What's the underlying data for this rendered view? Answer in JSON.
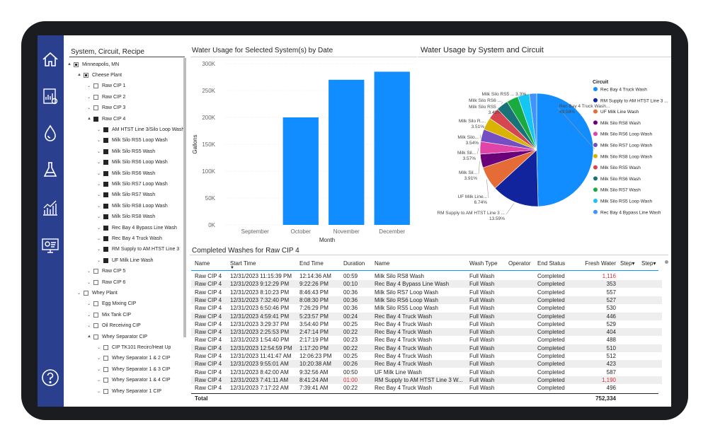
{
  "nav": {
    "icons": [
      "home-icon",
      "report-icon",
      "water-drop-icon",
      "flask-icon",
      "analytics-icon",
      "monitor-settings-icon",
      "help-icon"
    ]
  },
  "slicer": {
    "title": "System, Circuit, Recipe",
    "items": [
      {
        "label": "Minneapolis, MN",
        "level": 0,
        "expander": "▲",
        "state": "partial"
      },
      {
        "label": "Cheese Plant",
        "level": 1,
        "expander": "▲",
        "state": "partial"
      },
      {
        "label": "Raw CIP 1",
        "level": 2,
        "expander": "⌄",
        "state": "empty"
      },
      {
        "label": "Raw CIP 2",
        "level": 2,
        "expander": "⌄",
        "state": "empty"
      },
      {
        "label": "Raw CIP 3",
        "level": 2,
        "expander": "⌄",
        "state": "empty"
      },
      {
        "label": "Raw CIP 4",
        "level": 2,
        "expander": "▲",
        "state": "checked"
      },
      {
        "label": "AM HTST Line 3/Silo Loop Wash",
        "level": 3,
        "expander": "⌄",
        "state": "checked"
      },
      {
        "label": "Milk Silo RS5 Loop Wash",
        "level": 3,
        "expander": "⌄",
        "state": "checked"
      },
      {
        "label": "Milk Silo RS5 Wash",
        "level": 3,
        "expander": "⌄",
        "state": "checked"
      },
      {
        "label": "Milk Silo RS6 Loop Wash",
        "level": 3,
        "expander": "⌄",
        "state": "checked"
      },
      {
        "label": "Milk Silo RS6 Wash",
        "level": 3,
        "expander": "⌄",
        "state": "checked"
      },
      {
        "label": "Milk Silo RS7 Loop Wash",
        "level": 3,
        "expander": "⌄",
        "state": "checked"
      },
      {
        "label": "Milk Silo RS7 Wash",
        "level": 3,
        "expander": "⌄",
        "state": "checked"
      },
      {
        "label": "Milk Silo RS8 Loop Wash",
        "level": 3,
        "expander": "⌄",
        "state": "checked"
      },
      {
        "label": "Milk Silo RS8 Wash",
        "level": 3,
        "expander": "⌄",
        "state": "checked"
      },
      {
        "label": "Rec Bay 4 Bypass Line Wash",
        "level": 3,
        "expander": "⌄",
        "state": "checked"
      },
      {
        "label": "Rec Bay 4 Truck Wash",
        "level": 3,
        "expander": "⌄",
        "state": "checked"
      },
      {
        "label": "RM Supply to AM HTST Line 3",
        "level": 3,
        "expander": "⌄",
        "state": "checked"
      },
      {
        "label": "UF Milk Line Wash",
        "level": 3,
        "expander": "⌄",
        "state": "checked"
      },
      {
        "label": "Raw CIP 5",
        "level": 2,
        "expander": "⌄",
        "state": "empty"
      },
      {
        "label": "Raw CIP 6",
        "level": 2,
        "expander": "⌄",
        "state": "empty"
      },
      {
        "label": "Whey Plant",
        "level": 1,
        "expander": "⌄",
        "state": "empty"
      },
      {
        "label": "Egg Mixing CIP",
        "level": 2,
        "expander": "⌄",
        "state": "empty"
      },
      {
        "label": "Mix Tank CIP",
        "level": 2,
        "expander": "⌄",
        "state": "empty"
      },
      {
        "label": "Oil Receiving CIP",
        "level": 2,
        "expander": "⌄",
        "state": "empty"
      },
      {
        "label": "Whey Separator CIP",
        "level": 2,
        "expander": "▲",
        "state": "empty"
      },
      {
        "label": "CIP TK101 Recirc/Heat Up",
        "level": 3,
        "expander": "⌄",
        "state": "empty"
      },
      {
        "label": "Whey Separator 1 & 2 CIP",
        "level": 3,
        "expander": "⌄",
        "state": "empty"
      },
      {
        "label": "Whey Separator 1 & 3 CIP",
        "level": 3,
        "expander": "⌄",
        "state": "empty"
      },
      {
        "label": "Whey Separator 1 & 4 CIP",
        "level": 3,
        "expander": "⌄",
        "state": "empty"
      },
      {
        "label": "Whey Separator 1 CIP",
        "level": 3,
        "expander": "⌄",
        "state": "empty"
      }
    ]
  },
  "chart_data": [
    {
      "type": "bar",
      "title": "Water Usage for Selected System(s) by Date",
      "xlabel": "Month",
      "ylabel": "Gallons",
      "categories": [
        "September",
        "October",
        "November",
        "December"
      ],
      "values": [
        0,
        200000,
        270000,
        285000
      ],
      "ylim": [
        0,
        300000
      ],
      "yticks": [
        "0K",
        "50K",
        "100K",
        "150K",
        "200K",
        "250K",
        "300K"
      ],
      "ytick_values": [
        0,
        50000,
        100000,
        150000,
        200000,
        250000,
        300000
      ],
      "color": "#118dff"
    },
    {
      "type": "pie",
      "title": "Water Usage by System and Circuit",
      "legend_title": "Circuit",
      "legend_position": "right",
      "slices": [
        {
          "name": "Rec Bay 4 Truck Wash",
          "short": "Rec Bay 4 Truck Wash...",
          "pct_label": "49.58%",
          "value": 49.58,
          "color": "#118dff"
        },
        {
          "name": "RM Supply to AM HTST Line 3 ...",
          "short": "RM Supply to AM HTST Line 3 ...",
          "pct_label": "13.59%",
          "value": 13.59,
          "color": "#12239e"
        },
        {
          "name": "UF Milk Line Wash",
          "short": "UF Milk Line...",
          "pct_label": "6.74%",
          "value": 6.74,
          "color": "#e66c37"
        },
        {
          "name": "Milk Silo RS8 Wash",
          "short": "Milk Sil...",
          "pct_label": "3.91%",
          "value": 3.91,
          "color": "#6b007b"
        },
        {
          "name": "Milk Silo RS6 Loop Wash",
          "short": "Milk Sil...",
          "pct_label": "3.57%",
          "value": 3.57,
          "color": "#e044a7"
        },
        {
          "name": "Milk Silo RS7 Loop Wash",
          "short": "Milk Silo...",
          "pct_label": "3.54%",
          "value": 3.54,
          "color": "#744ec2"
        },
        {
          "name": "Milk Silo RS8 Loop Wash",
          "short": "Milk Silo R...",
          "pct_label": "3.51%",
          "value": 3.51,
          "color": "#d9b300"
        },
        {
          "name": "Milk Silo RS5 Wash",
          "short": "Milk Silo RS5 ...",
          "pct_label": "3.42%",
          "value": 3.42,
          "color": "#d64550"
        },
        {
          "name": "Milk Silo RS6 Wash",
          "short": "Milk Silo RS6 ...",
          "pct_label": "",
          "value": 3.4,
          "color": "#197278"
        },
        {
          "name": "Milk Silo RS7 Wash",
          "short": "",
          "pct_label": "",
          "value": 3.35,
          "color": "#1aab40"
        },
        {
          "name": "Milk Silo RS5 Loop Wash",
          "short": "Milk Silo RS5 ...",
          "pct_label": "3.3%",
          "value": 3.3,
          "color": "#15c6f4"
        },
        {
          "name": "Rec Bay 4 Bypass Line Wash",
          "short": "",
          "pct_label": "",
          "value": 2.09,
          "color": "#4092ff"
        }
      ]
    }
  ],
  "table": {
    "title": "Completed Washes for Raw CIP 4",
    "sort_indicator": "▼",
    "columns": [
      "Name",
      "Start Time",
      "End Time",
      "Duration",
      "Name",
      "Wash Type",
      "Operator",
      "End Status",
      "Fresh Water",
      "Step▾",
      "Step▾"
    ],
    "rows": [
      [
        "Raw CIP 4",
        "12/31/2023 11:15:39 PM",
        "12:14:36 AM",
        "00:59",
        "Milk Silo RS8 Wash",
        "Full Wash",
        "",
        "Completed",
        "1,116"
      ],
      [
        "Raw CIP 4",
        "12/31/2023 9:12:29 PM",
        "9:22:26 PM",
        "00:10",
        "Rec Bay 4 Bypass Line Wash",
        "Full Wash",
        "",
        "Completed",
        "353"
      ],
      [
        "Raw CIP 4",
        "12/31/2023 8:10:23 PM",
        "8:46:43 PM",
        "00:36",
        "Milk Silo RS7 Loop Wash",
        "Full Wash",
        "",
        "Completed",
        "557"
      ],
      [
        "Raw CIP 4",
        "12/31/2023 7:32:40 PM",
        "8:08:30 PM",
        "00:36",
        "Milk Silo RS6 Loop Wash",
        "Full Wash",
        "",
        "Completed",
        "527"
      ],
      [
        "Raw CIP 4",
        "12/31/2023 6:50:46 PM",
        "7:26:29 PM",
        "00:36",
        "Milk Silo RS5 Loop Wash",
        "Full Wash",
        "",
        "Completed",
        "530"
      ],
      [
        "Raw CIP 4",
        "12/31/2023 4:59:41 PM",
        "5:23:57 PM",
        "00:24",
        "Rec Bay 4 Truck Wash",
        "Full Wash",
        "",
        "Completed",
        "446"
      ],
      [
        "Raw CIP 4",
        "12/31/2023 3:29:37 PM",
        "3:54:40 PM",
        "00:25",
        "Rec Bay 4 Truck Wash",
        "Full Wash",
        "",
        "Completed",
        "529"
      ],
      [
        "Raw CIP 4",
        "12/31/2023 2:25:53 PM",
        "2:47:14 PM",
        "00:22",
        "Rec Bay 4 Truck Wash",
        "Full Wash",
        "",
        "Completed",
        "404"
      ],
      [
        "Raw CIP 4",
        "12/31/2023 1:54:40 PM",
        "2:17:19 PM",
        "00:23",
        "Rec Bay 4 Truck Wash",
        "Full Wash",
        "",
        "Completed",
        "488"
      ],
      [
        "Raw CIP 4",
        "12/31/2023 12:54:59 PM",
        "1:17:20 PM",
        "00:22",
        "Rec Bay 4 Truck Wash",
        "Full Wash",
        "",
        "Completed",
        "510"
      ],
      [
        "Raw CIP 4",
        "12/31/2023 11:41:47 AM",
        "12:06:23 PM",
        "00:25",
        "Rec Bay 4 Truck Wash",
        "Full Wash",
        "",
        "Completed",
        "512"
      ],
      [
        "Raw CIP 4",
        "12/31/2023 9:55:01 AM",
        "10:20:38 AM",
        "00:26",
        "Rec Bay 4 Truck Wash",
        "Full Wash",
        "",
        "Completed",
        "423"
      ],
      [
        "Raw CIP 4",
        "12/31/2023 8:42:00 AM",
        "9:32:56 AM",
        "00:50",
        "UF Milk Line Wash",
        "Full Wash",
        "",
        "Completed",
        "587"
      ],
      [
        "Raw CIP 4",
        "12/31/2023 7:41:11 AM",
        "8:41:24 AM",
        "01:00",
        "RM Supply to AM HTST Line 3 W...",
        "Full Wash",
        "",
        "Completed",
        "1,190"
      ],
      [
        "Raw CIP 4",
        "12/31/2023 7:17:22 AM",
        "7:39:41 AM",
        "00:22",
        "Rec Bay 4 Truck Wash",
        "Full Wash",
        "",
        "Completed",
        "496"
      ]
    ],
    "red_cells": [
      [
        0,
        8
      ],
      [
        13,
        3
      ],
      [
        13,
        8
      ]
    ],
    "total_label": "Total",
    "total_value": "752,334"
  }
}
